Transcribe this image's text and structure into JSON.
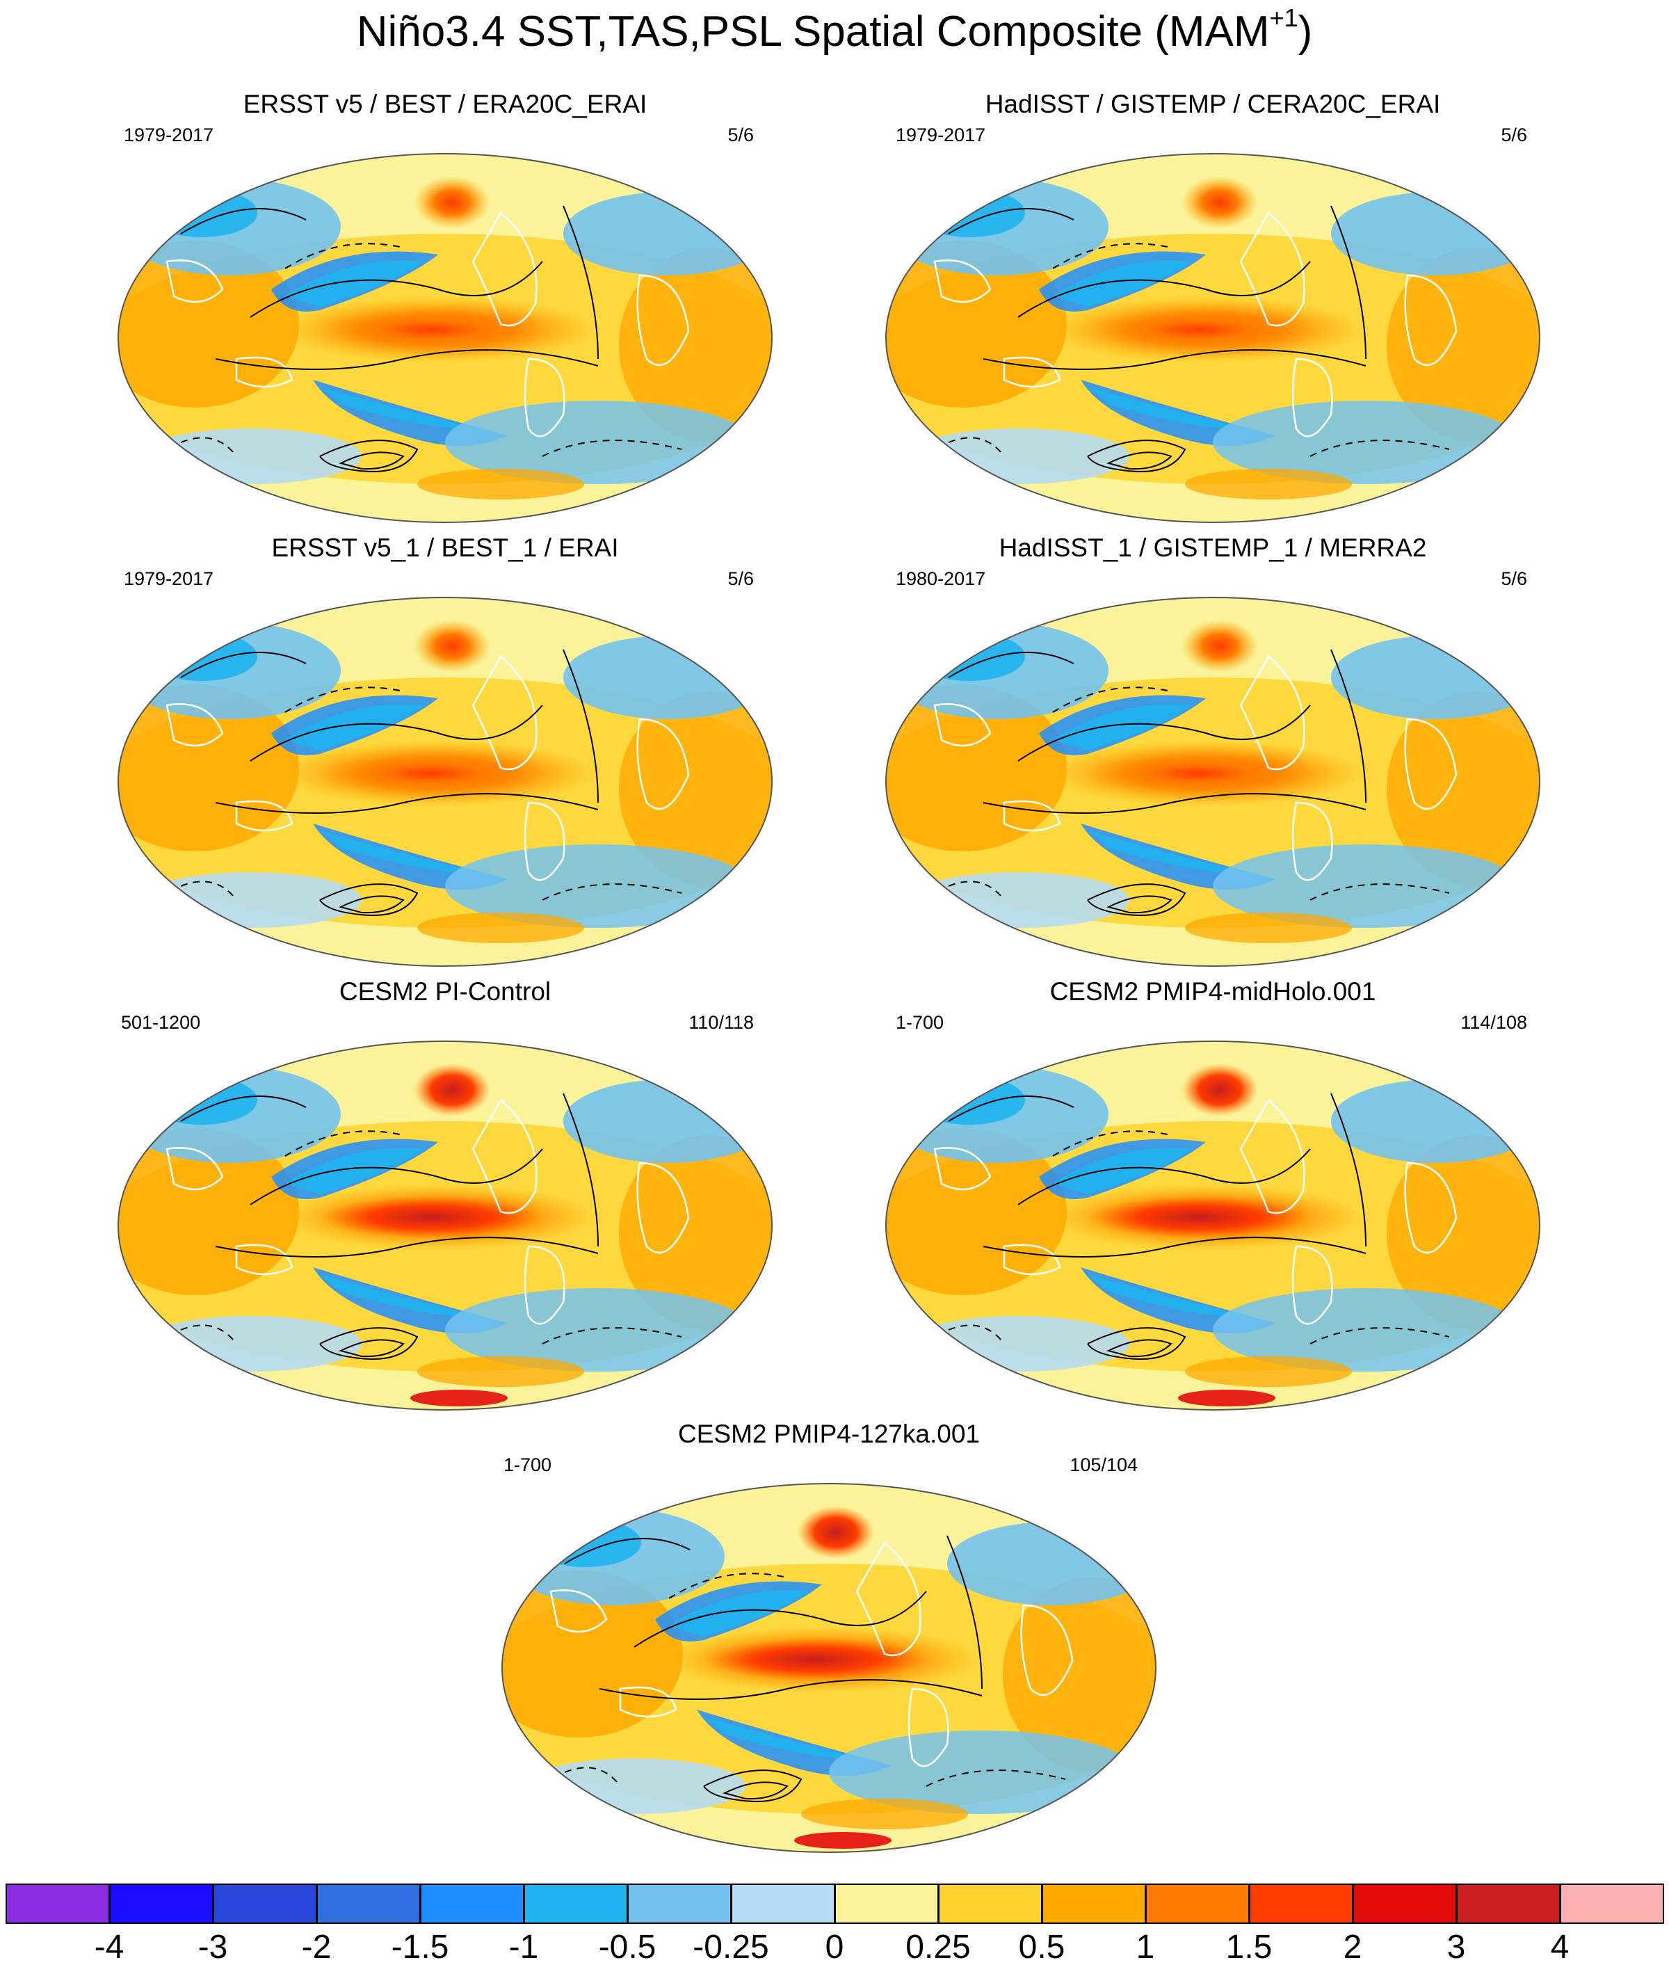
{
  "figure": {
    "title_prefix": "Niño3.4 SST,TAS,PSL Spatial Composite (MAM",
    "title_superscript": "+1",
    "title_suffix": ")"
  },
  "panels": [
    {
      "title": "ERSST v5 / BEST / ERA20C_ERAI",
      "years": "1979-2017",
      "count": "5/6"
    },
    {
      "title": "HadISST / GISTEMP / CERA20C_ERAI",
      "years": "1979-2017",
      "count": "5/6"
    },
    {
      "title": "ERSST v5_1 / BEST_1 / ERAI",
      "years": "1979-2017",
      "count": "5/6"
    },
    {
      "title": "HadISST_1 / GISTEMP_1 / MERRA2",
      "years": "1980-2017",
      "count": "5/6"
    },
    {
      "title": "CESM2 PI-Control",
      "years": "501-1200",
      "count": "110/118"
    },
    {
      "title": "CESM2 PMIP4-midHolo.001",
      "years": "1-700",
      "count": "114/108"
    },
    {
      "title": "CESM2 PMIP4-127ka.001",
      "years": "1-700",
      "count": "105/104"
    }
  ],
  "colorbar": {
    "colors": [
      "#8b2be2",
      "#1a0dff",
      "#2846d9",
      "#2f6fe0",
      "#1e8fff",
      "#1fb4f0",
      "#73c3ee",
      "#b4dcf2",
      "#fbf39a",
      "#ffd22e",
      "#ffaa00",
      "#ff7a00",
      "#ff3c00",
      "#e30a0a",
      "#c81e1e",
      "#ffb0b0"
    ],
    "ticks": [
      "-4",
      "-3",
      "-2",
      "-1.5",
      "-1",
      "-0.5",
      "-0.25",
      "0",
      "0.25",
      "0.5",
      "1",
      "1.5",
      "2",
      "3",
      "4"
    ]
  }
}
